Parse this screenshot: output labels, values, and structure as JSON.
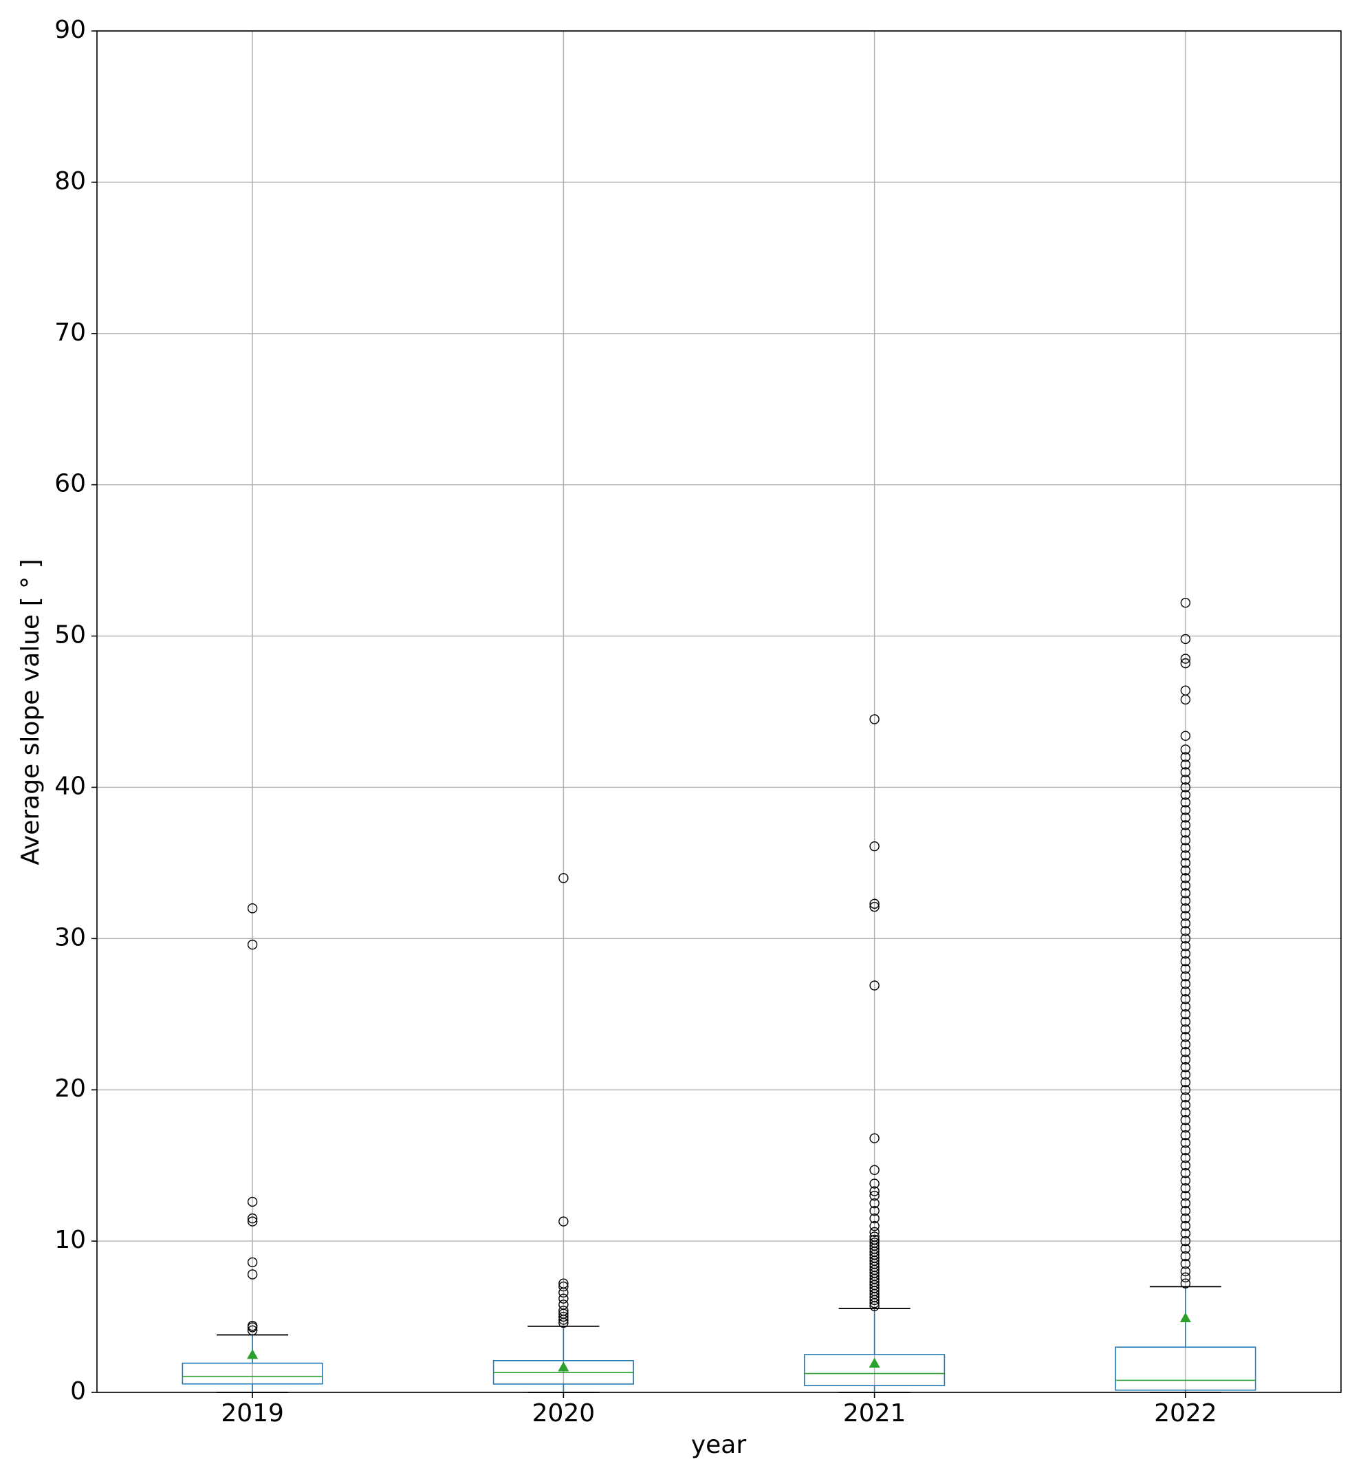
{
  "chart_data": {
    "type": "box",
    "x_label": "year",
    "y_label": "Average slope value [ ° ]",
    "categories": [
      "2019",
      "2020",
      "2021",
      "2022"
    ],
    "boxes": [
      {
        "whislo": 0,
        "q1": 0.56,
        "med": 1.06,
        "q3": 1.93,
        "whishi": 3.8,
        "mean": 2.5,
        "fliers": [
          4.1,
          4.3,
          4.4,
          7.8,
          8.6,
          11.3,
          11.5,
          12.6,
          29.6,
          32.0
        ]
      },
      {
        "whislo": 0,
        "q1": 0.55,
        "med": 1.31,
        "q3": 2.1,
        "whishi": 4.37,
        "mean": 1.68,
        "fliers": [
          4.6,
          4.8,
          5.0,
          5.2,
          5.4,
          5.8,
          6.2,
          6.6,
          7.0,
          7.2,
          11.3,
          34.0
        ]
      },
      {
        "whislo": 0,
        "q1": 0.45,
        "med": 1.25,
        "q3": 2.5,
        "whishi": 5.55,
        "mean": 1.93,
        "fliers": [
          5.7,
          5.9,
          6.1,
          6.3,
          6.5,
          6.7,
          6.9,
          7.1,
          7.3,
          7.5,
          7.7,
          7.9,
          8.1,
          8.3,
          8.5,
          8.7,
          8.9,
          9.1,
          9.3,
          9.5,
          9.7,
          9.9,
          10.1,
          10.3,
          10.6,
          11.0,
          11.5,
          12.0,
          12.5,
          13.0,
          13.3,
          13.8,
          14.7,
          16.8,
          26.9,
          32.1,
          32.3,
          36.1,
          44.5
        ]
      },
      {
        "whislo": 0,
        "q1": 0.15,
        "med": 0.8,
        "q3": 2.99,
        "whishi": 6.99,
        "mean": 4.93,
        "fliers": [
          7.2,
          7.6,
          8.0,
          8.5,
          9.0,
          9.5,
          10.0,
          10.5,
          11.0,
          11.5,
          12.0,
          12.5,
          13.0,
          13.5,
          14.0,
          14.5,
          15.0,
          15.5,
          16.0,
          16.5,
          17.0,
          17.5,
          18.0,
          18.5,
          19.0,
          19.5,
          20.0,
          20.5,
          21.0,
          21.5,
          22.0,
          22.5,
          23.0,
          23.5,
          24.0,
          24.5,
          25.0,
          25.5,
          26.0,
          26.5,
          27.0,
          27.5,
          28.0,
          28.5,
          29.0,
          29.5,
          30.0,
          30.5,
          31.0,
          31.5,
          32.0,
          32.5,
          33.0,
          33.5,
          34.0,
          34.5,
          35.0,
          35.5,
          36.0,
          36.5,
          37.0,
          37.5,
          38.0,
          38.5,
          39.0,
          39.5,
          40.0,
          40.5,
          41.0,
          41.5,
          42.0,
          42.5,
          43.4,
          45.8,
          46.4,
          48.2,
          48.5,
          49.8,
          52.2
        ]
      }
    ],
    "box_color": "#1f77b4",
    "median_color": "#2ca02c",
    "mean_color": "#2ca02c",
    "flier_color": "#000000",
    "ylim": [
      0,
      90
    ],
    "yticks": [
      0,
      10,
      20,
      30,
      40,
      50,
      60,
      70,
      80,
      90
    ],
    "grid": true
  }
}
